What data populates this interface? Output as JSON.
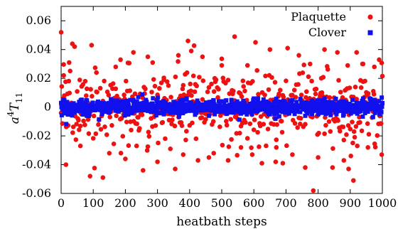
{
  "chart_data": {
    "type": "scatter",
    "xlabel": "heatbath steps",
    "ylabel_base": "a",
    "ylabel_exp": "4",
    "ylabel_var": "T",
    "ylabel_sub": "11",
    "xlim": [
      0,
      1000
    ],
    "ylim": [
      -0.06,
      0.07
    ],
    "x_ticks": [
      0,
      100,
      200,
      300,
      400,
      500,
      600,
      700,
      800,
      900,
      1000
    ],
    "y_ticks": [
      -0.06,
      -0.04,
      -0.02,
      0,
      0.02,
      0.04,
      0.06
    ],
    "y_tick_labels": [
      "-0.06",
      "-0.04",
      "-0.02",
      "0",
      "0.02",
      "0.04",
      "0.06"
    ],
    "legend_position": "top-right",
    "series": [
      {
        "name": "Plaquette",
        "color": "#ee1111",
        "marker": "circle",
        "typical_spread": 0.013,
        "points": [
          [
            0,
            0.052
          ],
          [
            8,
            0.022
          ],
          [
            15,
            -0.04
          ],
          [
            25,
            0.031
          ],
          [
            35,
            0.044
          ],
          [
            42,
            0.042
          ],
          [
            60,
            -0.027
          ],
          [
            75,
            0.018
          ],
          [
            90,
            -0.048
          ],
          [
            95,
            0.043
          ],
          [
            110,
            0.024
          ],
          [
            130,
            -0.049
          ],
          [
            150,
            -0.032
          ],
          [
            170,
            0.028
          ],
          [
            185,
            0.033
          ],
          [
            200,
            -0.036
          ],
          [
            225,
            0.038
          ],
          [
            235,
            -0.027
          ],
          [
            255,
            -0.044
          ],
          [
            270,
            0.035
          ],
          [
            285,
            0.031
          ],
          [
            300,
            -0.038
          ],
          [
            320,
            0.019
          ],
          [
            340,
            -0.029
          ],
          [
            355,
            -0.043
          ],
          [
            365,
            0.036
          ],
          [
            380,
            -0.033
          ],
          [
            395,
            0.046
          ],
          [
            405,
            0.039
          ],
          [
            420,
            -0.022
          ],
          [
            440,
            0.035
          ],
          [
            460,
            -0.035
          ],
          [
            475,
            -0.032
          ],
          [
            500,
            0.029
          ],
          [
            520,
            -0.037
          ],
          [
            540,
            0.049
          ],
          [
            560,
            -0.028
          ],
          [
            580,
            0.029
          ],
          [
            595,
            -0.033
          ],
          [
            605,
            0.045
          ],
          [
            625,
            -0.039
          ],
          [
            650,
            0.04
          ],
          [
            670,
            -0.028
          ],
          [
            690,
            -0.039
          ],
          [
            705,
            0.041
          ],
          [
            720,
            -0.033
          ],
          [
            740,
            0.036
          ],
          [
            760,
            -0.042
          ],
          [
            775,
            0.03
          ],
          [
            785,
            -0.058
          ],
          [
            800,
            -0.035
          ],
          [
            820,
            0.04
          ],
          [
            845,
            -0.042
          ],
          [
            860,
            0.038
          ],
          [
            880,
            -0.037
          ],
          [
            895,
            -0.043
          ],
          [
            910,
            -0.051
          ],
          [
            920,
            0.038
          ],
          [
            940,
            0.03
          ],
          [
            955,
            -0.028
          ],
          [
            975,
            0.028
          ],
          [
            990,
            0.033
          ],
          [
            998,
            -0.033
          ]
        ]
      },
      {
        "name": "Clover",
        "color": "#1111ee",
        "marker": "square",
        "typical_spread": 0.0025,
        "points": [
          [
            10,
            0.005
          ],
          [
            80,
            -0.006
          ],
          [
            170,
            0.004
          ],
          [
            240,
            0.007
          ],
          [
            320,
            -0.005
          ],
          [
            390,
            0.006
          ],
          [
            460,
            -0.006
          ],
          [
            530,
            0.005
          ],
          [
            600,
            0.006
          ],
          [
            650,
            -0.005
          ],
          [
            720,
            0.005
          ],
          [
            760,
            -0.006
          ],
          [
            820,
            0.006
          ],
          [
            880,
            -0.005
          ],
          [
            940,
            0.006
          ],
          [
            990,
            0.004
          ]
        ]
      }
    ]
  }
}
